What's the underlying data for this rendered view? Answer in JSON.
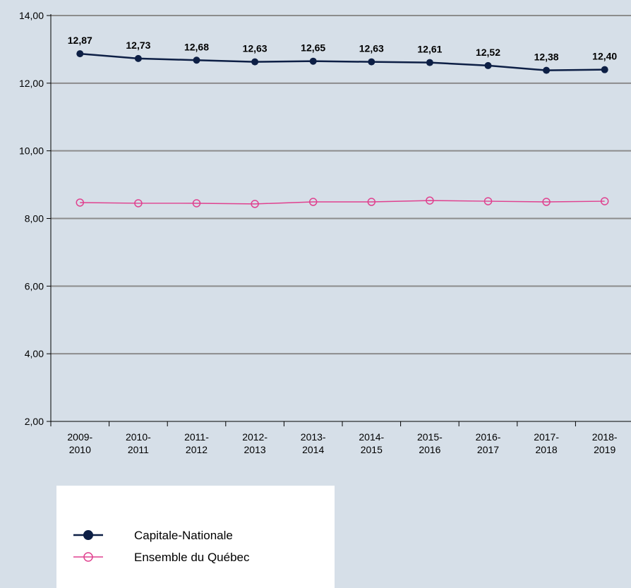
{
  "chart_data": {
    "type": "line",
    "categories": [
      [
        "2009-",
        "2010"
      ],
      [
        "2010-",
        "2011"
      ],
      [
        "2011-",
        "2012"
      ],
      [
        "2012-",
        "2013"
      ],
      [
        "2013-",
        "2014"
      ],
      [
        "2014-",
        "2015"
      ],
      [
        "2015-",
        "2016"
      ],
      [
        "2016-",
        "2017"
      ],
      [
        "2017-",
        "2018"
      ],
      [
        "2018-",
        "2019"
      ]
    ],
    "ylim": [
      2,
      14
    ],
    "yticks": [
      "2,00",
      "4,00",
      "6,00",
      "8,00",
      "10,00",
      "12,00",
      "14,00"
    ],
    "ytick_values": [
      2,
      4,
      6,
      8,
      10,
      12,
      14
    ],
    "grid": true,
    "legend_position": "bottom-left",
    "series": [
      {
        "name": "Capitale-Nationale",
        "values": [
          12.87,
          12.73,
          12.68,
          12.63,
          12.65,
          12.63,
          12.61,
          12.52,
          12.38,
          12.4
        ],
        "labels": [
          "12,87",
          "12,73",
          "12,68",
          "12,63",
          "12,65",
          "12,63",
          "12,61",
          "12,52",
          "12,38",
          "12,40"
        ],
        "color": "#0d1f45",
        "marker": "filled-circle"
      },
      {
        "name": "Ensemble du Québec",
        "values": [
          8.47,
          8.45,
          8.45,
          8.43,
          8.49,
          8.49,
          8.53,
          8.51,
          8.49,
          8.51
        ],
        "color": "#e0418f",
        "marker": "hollow-circle"
      }
    ]
  }
}
